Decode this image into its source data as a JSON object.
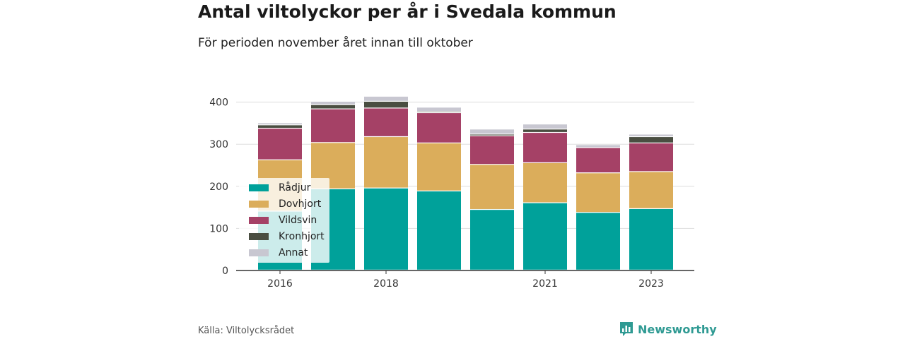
{
  "header": {
    "title": "Antal viltolyckor per år i Svedala kommun",
    "subtitle": "För perioden november året innan till oktober"
  },
  "footer": {
    "source": "Källa: Viltolycksrådet",
    "brand": "Newsworthy",
    "brand_icon": "bar-chart-logo-icon"
  },
  "chart_data": {
    "type": "bar",
    "stacked": true,
    "categories": [
      "2016",
      "2017",
      "2018",
      "2019",
      "2020",
      "2021",
      "2022",
      "2023"
    ],
    "x_tick_labels": [
      "2016",
      "",
      "2018",
      "",
      "",
      "2021",
      "",
      "2023"
    ],
    "y_ticks": [
      0,
      100,
      200,
      300,
      400
    ],
    "ylim": [
      0,
      430
    ],
    "grid": true,
    "legend_position": "bottom-left (inside plot)",
    "series": [
      {
        "name": "Rådjur",
        "color": "#00a19a",
        "values": [
          140,
          193,
          195,
          188,
          144,
          160,
          137,
          146
        ]
      },
      {
        "name": "Dovhjort",
        "color": "#dbad5b",
        "values": [
          122,
          110,
          122,
          114,
          107,
          95,
          94,
          88
        ]
      },
      {
        "name": "Vildsvin",
        "color": "#a54166",
        "values": [
          75,
          80,
          68,
          72,
          68,
          72,
          60,
          68
        ]
      },
      {
        "name": "Kronhjort",
        "color": "#4a4e41",
        "values": [
          8,
          10,
          16,
          3,
          4,
          8,
          0,
          15
        ]
      },
      {
        "name": "Annat",
        "color": "#c8c7d1",
        "values": [
          5,
          8,
          12,
          10,
          12,
          12,
          7,
          6
        ]
      }
    ]
  }
}
